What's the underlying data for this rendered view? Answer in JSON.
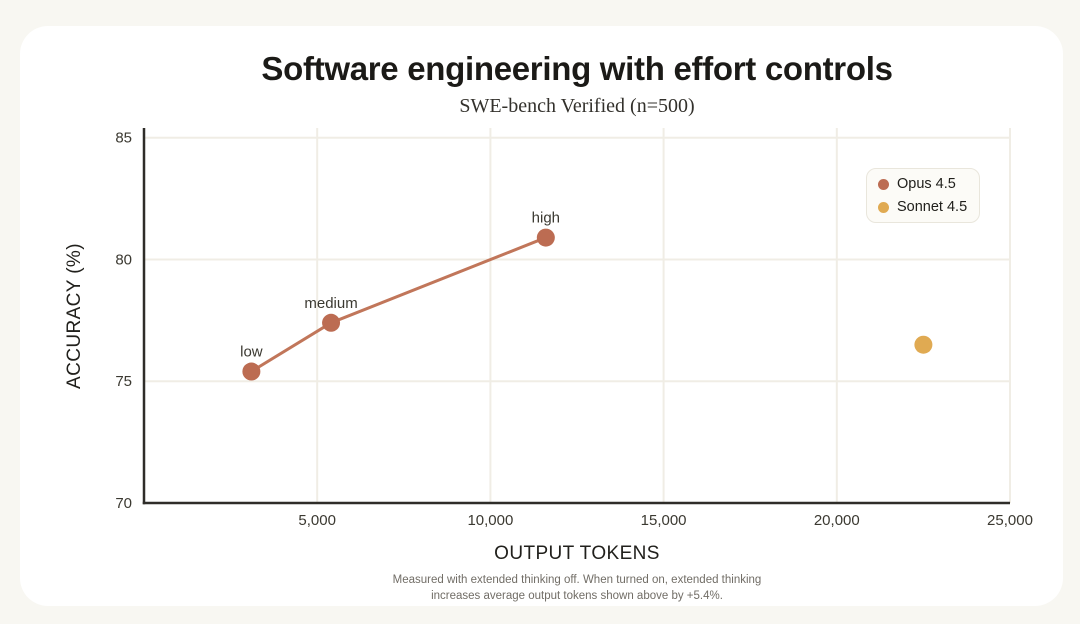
{
  "page": {
    "background_color": "#f8f7f2",
    "card_background_color": "#ffffff"
  },
  "header": {
    "title": "Software engineering with effort controls",
    "subtitle": "SWE-bench Verified (n=500)"
  },
  "footnote": {
    "line1": "Measured with extended thinking off. When turned on, extended thinking",
    "line2": "increases average output tokens shown above by +5.4%."
  },
  "chart_data": {
    "type": "scatter",
    "title": "Software engineering with effort controls",
    "subtitle": "SWE-bench Verified (n=500)",
    "xlabel": "OUTPUT TOKENS",
    "ylabel": "ACCURACY (%)",
    "xlim": [
      0,
      25000
    ],
    "ylim": [
      70,
      85.4
    ],
    "x_ticks": [
      5000,
      10000,
      15000,
      20000,
      25000
    ],
    "x_tick_labels": [
      "5,000",
      "10,000",
      "15,000",
      "20,000",
      "25,000"
    ],
    "y_ticks": [
      70,
      75,
      80,
      85
    ],
    "y_tick_labels": [
      "70",
      "75",
      "80",
      "85"
    ],
    "grid": true,
    "legend_position": "top-right",
    "colors": {
      "grid": "#f0ede5",
      "axis": "#2f2d29",
      "tick_label": "#3b3931",
      "point_label": "#3b3931"
    },
    "series": [
      {
        "name": "Opus 4.5",
        "color": "#bc6c52",
        "line_color": "#c1765a",
        "show_line": true,
        "points": [
          {
            "label": "low",
            "x": 3100,
            "y": 75.4
          },
          {
            "label": "medium",
            "x": 5400,
            "y": 77.4
          },
          {
            "label": "high",
            "x": 11600,
            "y": 80.9
          }
        ]
      },
      {
        "name": "Sonnet 4.5",
        "color": "#e0aa52",
        "line_color": "#e0aa52",
        "show_line": false,
        "points": [
          {
            "label": "",
            "x": 22500,
            "y": 76.5
          }
        ]
      }
    ]
  }
}
